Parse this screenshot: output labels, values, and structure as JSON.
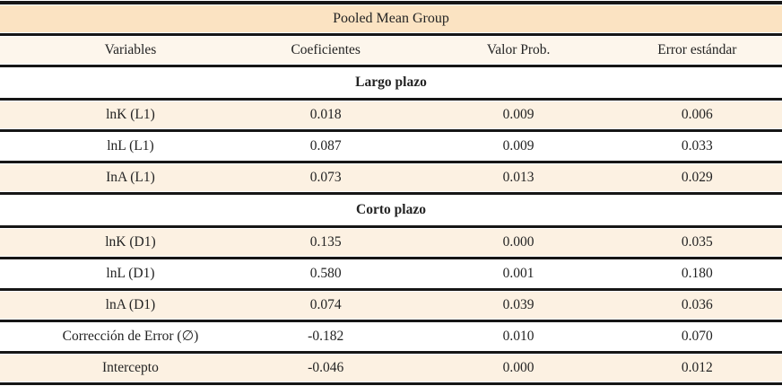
{
  "title": "Pooled Mean Group",
  "columns": [
    "Variables",
    "Coeficientes",
    "Valor Prob.",
    "Error estándar"
  ],
  "sections": [
    {
      "label": "Largo plazo",
      "rows": [
        {
          "variable": "lnK (L1)",
          "coeficiente": "0.018",
          "valor_prob": "0.009",
          "error_estandar": "0.006"
        },
        {
          "variable": "lnL (L1)",
          "coeficiente": "0.087",
          "valor_prob": "0.009",
          "error_estandar": "0.033"
        },
        {
          "variable": "InA (L1)",
          "coeficiente": "0.073",
          "valor_prob": "0.013",
          "error_estandar": "0.029"
        }
      ]
    },
    {
      "label": "Corto plazo",
      "rows": [
        {
          "variable": "lnK (D1)",
          "coeficiente": "0.135",
          "valor_prob": "0.000",
          "error_estandar": "0.035"
        },
        {
          "variable": "lnL (D1)",
          "coeficiente": "0.580",
          "valor_prob": "0.001",
          "error_estandar": "0.180"
        },
        {
          "variable": "lnA (D1)",
          "coeficiente": "0.074",
          "valor_prob": "0.039",
          "error_estandar": "0.036"
        },
        {
          "variable": "Corrección de Error (∅)",
          "coeficiente": "-0.182",
          "valor_prob": "0.010",
          "error_estandar": "0.070"
        },
        {
          "variable": "Intercepto",
          "coeficiente": "-0.046",
          "valor_prob": "0.000",
          "error_estandar": "0.012"
        }
      ]
    }
  ],
  "colors": {
    "title_band": "#fbe3c2",
    "header_row": "#fdf6ec",
    "row_cream": "#fcf1e2",
    "row_white": "#ffffff",
    "rule": "#161616",
    "text": "#232323"
  },
  "chart_data": {
    "type": "table",
    "title": "Pooled Mean Group",
    "columns": [
      "Variables",
      "Coeficientes",
      "Valor Prob.",
      "Error estándar"
    ],
    "rows": [
      [
        "Largo plazo",
        "",
        "",
        ""
      ],
      [
        "lnK (L1)",
        0.018,
        0.009,
        0.006
      ],
      [
        "lnL (L1)",
        0.087,
        0.009,
        0.033
      ],
      [
        "InA (L1)",
        0.073,
        0.013,
        0.029
      ],
      [
        "Corto plazo",
        "",
        "",
        ""
      ],
      [
        "lnK (D1)",
        0.135,
        0.0,
        0.035
      ],
      [
        "lnL (D1)",
        0.58,
        0.001,
        0.18
      ],
      [
        "lnA (D1)",
        0.074,
        0.039,
        0.036
      ],
      [
        "Corrección de Error (∅)",
        -0.182,
        0.01,
        0.07
      ],
      [
        "Intercepto",
        -0.046,
        0.0,
        0.012
      ]
    ]
  }
}
